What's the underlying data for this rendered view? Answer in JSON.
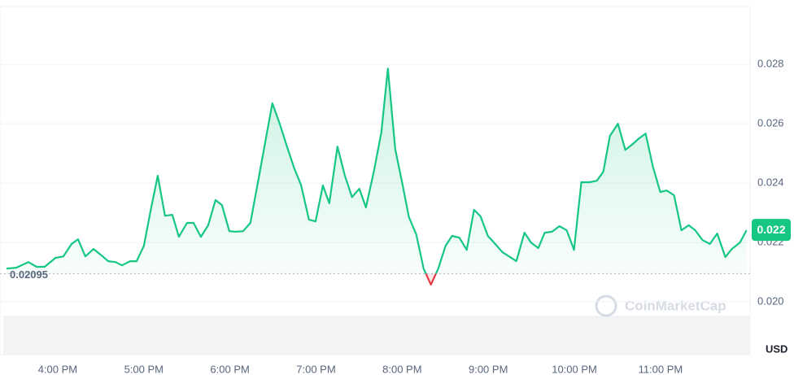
{
  "chart_data": {
    "type": "line",
    "currency": "USD",
    "watermark": "CoinMarketCap",
    "baseline": 0.02095,
    "current_price": {
      "value": 0.02241,
      "label": "0.022"
    },
    "color": "#16c784",
    "color_below": "#ea3943",
    "grid": true,
    "xlim": [
      15.33,
      24.04
    ],
    "ylim": [
      0.01822,
      0.02995
    ],
    "xticks": [
      {
        "value": 16,
        "label": "4:00 PM"
      },
      {
        "value": 17,
        "label": "5:00 PM"
      },
      {
        "value": 18,
        "label": "6:00 PM"
      },
      {
        "value": 19,
        "label": "7:00 PM"
      },
      {
        "value": 20,
        "label": "8:00 PM"
      },
      {
        "value": 21,
        "label": "9:00 PM"
      },
      {
        "value": 22,
        "label": "10:00 PM"
      },
      {
        "value": 23,
        "label": "11:00 PM"
      }
    ],
    "yticks": [
      {
        "value": 0.02,
        "label": "0.020"
      },
      0.022,
      0.024,
      0.026,
      0.028
    ],
    "x": [
      15.405,
      15.518,
      15.66,
      15.755,
      15.849,
      15.972,
      16.066,
      16.161,
      16.236,
      16.321,
      16.416,
      16.51,
      16.586,
      16.671,
      16.746,
      16.841,
      16.916,
      17.001,
      17.077,
      17.162,
      17.246,
      17.331,
      17.407,
      17.502,
      17.577,
      17.662,
      17.747,
      17.832,
      17.907,
      17.993,
      18.068,
      18.153,
      18.238,
      18.332,
      18.418,
      18.493,
      18.578,
      18.663,
      18.748,
      18.824,
      18.918,
      18.994,
      19.079,
      19.154,
      19.249,
      19.333,
      19.418,
      19.503,
      19.579,
      19.673,
      19.758,
      19.834,
      19.919,
      20.004,
      20.079,
      20.164,
      20.249,
      20.334,
      20.419,
      20.504,
      20.58,
      20.665,
      20.75,
      20.835,
      20.91,
      20.995,
      21.08,
      21.165,
      21.241,
      21.326,
      21.42,
      21.496,
      21.581,
      21.656,
      21.741,
      21.826,
      21.911,
      21.996,
      22.081,
      22.176,
      22.261,
      22.336,
      22.412,
      22.506,
      22.591,
      22.667,
      22.752,
      22.827,
      22.912,
      22.997,
      23.073,
      23.158,
      23.243,
      23.328,
      23.403,
      23.488,
      23.573,
      23.658,
      23.753,
      23.828,
      23.923,
      23.998
    ],
    "values": [
      0.02112,
      0.02115,
      0.02134,
      0.02118,
      0.02118,
      0.02148,
      0.02153,
      0.02195,
      0.02211,
      0.02153,
      0.02178,
      0.02156,
      0.02137,
      0.02134,
      0.02123,
      0.02137,
      0.02137,
      0.02189,
      0.02304,
      0.02425,
      0.0229,
      0.02293,
      0.02219,
      0.02266,
      0.02266,
      0.02219,
      0.02258,
      0.02343,
      0.02326,
      0.02238,
      0.02236,
      0.02238,
      0.02266,
      0.02414,
      0.02551,
      0.02669,
      0.026,
      0.02523,
      0.02449,
      0.02395,
      0.02277,
      0.02271,
      0.02392,
      0.02332,
      0.02523,
      0.02427,
      0.02353,
      0.02381,
      0.02318,
      0.02441,
      0.0257,
      0.02786,
      0.02515,
      0.02395,
      0.02285,
      0.02227,
      0.02112,
      0.02058,
      0.02112,
      0.02189,
      0.02222,
      0.02216,
      0.02175,
      0.0231,
      0.02288,
      0.02222,
      0.02195,
      0.02167,
      0.02153,
      0.02137,
      0.02233,
      0.022,
      0.02181,
      0.02233,
      0.02236,
      0.02255,
      0.02241,
      0.02175,
      0.02403,
      0.02403,
      0.02408,
      0.02438,
      0.02559,
      0.026,
      0.02512,
      0.02529,
      0.02551,
      0.02567,
      0.02455,
      0.0237,
      0.02375,
      0.02359,
      0.02241,
      0.02258,
      0.02241,
      0.02208,
      0.02195,
      0.0223,
      0.02151,
      0.02178,
      0.022,
      0.02241
    ]
  }
}
